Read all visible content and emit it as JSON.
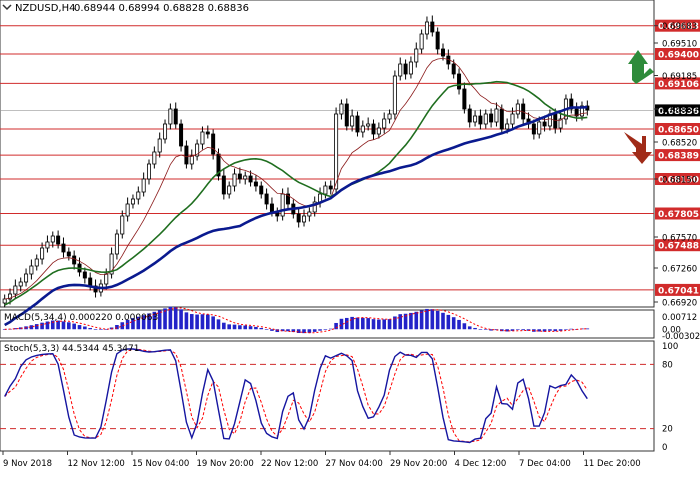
{
  "header": {
    "symbol": "NZDUSD,H4",
    "ohlc": "0.68944 0.68994 0.68828 0.68836"
  },
  "chart_data": [
    {
      "type": "line",
      "panel": "price",
      "ylim": [
        0.6688,
        0.6992
      ],
      "price_axis_labels": [
        "0.69683",
        "0.69510",
        "0.69185",
        "0.68850",
        "0.68520",
        "0.68150",
        "0.67570",
        "0.67260",
        "0.66920"
      ],
      "support_resistance_levels": [
        {
          "value": 0.69683,
          "label": "0.69683"
        },
        {
          "value": 0.694,
          "label": "0.69400"
        },
        {
          "value": 0.69106,
          "label": "0.69106"
        },
        {
          "value": 0.6865,
          "label": "0.68650"
        },
        {
          "value": 0.68389,
          "label": "0.68389"
        },
        {
          "value": 0.6815,
          "label": "0.68150"
        },
        {
          "value": 0.67805,
          "label": "0.67805"
        },
        {
          "value": 0.67488,
          "label": "0.67488"
        },
        {
          "value": 0.67041,
          "label": "0.67041"
        }
      ],
      "current_price": {
        "value": 0.68836,
        "label": "0.68836"
      },
      "close_series": [
        0.6695,
        0.67,
        0.6708,
        0.6712,
        0.672,
        0.6728,
        0.6735,
        0.6746,
        0.6752,
        0.6758,
        0.675,
        0.6742,
        0.6738,
        0.673,
        0.6722,
        0.6716,
        0.6708,
        0.6702,
        0.671,
        0.672,
        0.674,
        0.676,
        0.6778,
        0.679,
        0.6795,
        0.6802,
        0.6815,
        0.683,
        0.6842,
        0.6855,
        0.687,
        0.6885,
        0.687,
        0.6848,
        0.683,
        0.6838,
        0.685,
        0.6862,
        0.686,
        0.684,
        0.6818,
        0.68,
        0.6808,
        0.682,
        0.6815,
        0.6818,
        0.6812,
        0.6808,
        0.68,
        0.679,
        0.6782,
        0.6778,
        0.68,
        0.679,
        0.678,
        0.6772,
        0.6778,
        0.6782,
        0.6792,
        0.68,
        0.6808,
        0.6805,
        0.688,
        0.689,
        0.6868,
        0.6878,
        0.6862,
        0.6868,
        0.687,
        0.686,
        0.6866,
        0.6875,
        0.688,
        0.6918,
        0.693,
        0.692,
        0.6932,
        0.6945,
        0.696,
        0.6972,
        0.6962,
        0.6945,
        0.6938,
        0.693,
        0.692,
        0.6905,
        0.6885,
        0.6872,
        0.6878,
        0.687,
        0.688,
        0.6872,
        0.6885,
        0.6865,
        0.687,
        0.688,
        0.689,
        0.6875,
        0.687,
        0.686,
        0.6872,
        0.6868,
        0.688,
        0.6866,
        0.6875,
        0.6895,
        0.6885,
        0.6878,
        0.6888,
        0.6884
      ],
      "series": [
        {
          "role": "ma_fast",
          "color": "#8b1a1a"
        },
        {
          "role": "ma_mid",
          "color": "#1f6e1f"
        },
        {
          "role": "ma_slow",
          "color": "#0a1a8f"
        }
      ],
      "arrows": [
        {
          "direction": "up",
          "color": "#2e8b3a"
        },
        {
          "direction": "down",
          "color": "#a02b18"
        }
      ],
      "grid": false
    },
    {
      "type": "bar",
      "panel": "macd",
      "title": "MACD(5,34,4) 0.000220 0.000063",
      "ylim": [
        -0.00302,
        0.00712
      ],
      "axis_labels": [
        "0.00712",
        "0.00",
        "-0.00302"
      ],
      "bar_color": "#2323c8",
      "signal_color": "#ff0000"
    },
    {
      "type": "line",
      "panel": "stochastic",
      "title": "Stoch(5,3,3) 44.5344 45.3471",
      "ylim": [
        0,
        100
      ],
      "axis_labels": [
        "100",
        "80",
        "20",
        "0"
      ],
      "levels": [
        80,
        20
      ],
      "main_color": "#1515a0",
      "signal_color": "#ff0000"
    }
  ],
  "time_axis": [
    "9 Nov 2018",
    "12 Nov 12:00",
    "15 Nov 04:00",
    "19 Nov 20:00",
    "22 Nov 12:00",
    "27 Nov 04:00",
    "29 Nov 20:00",
    "4 Dec 12:00",
    "7 Dec 04:00",
    "11 Dec 20:00"
  ]
}
